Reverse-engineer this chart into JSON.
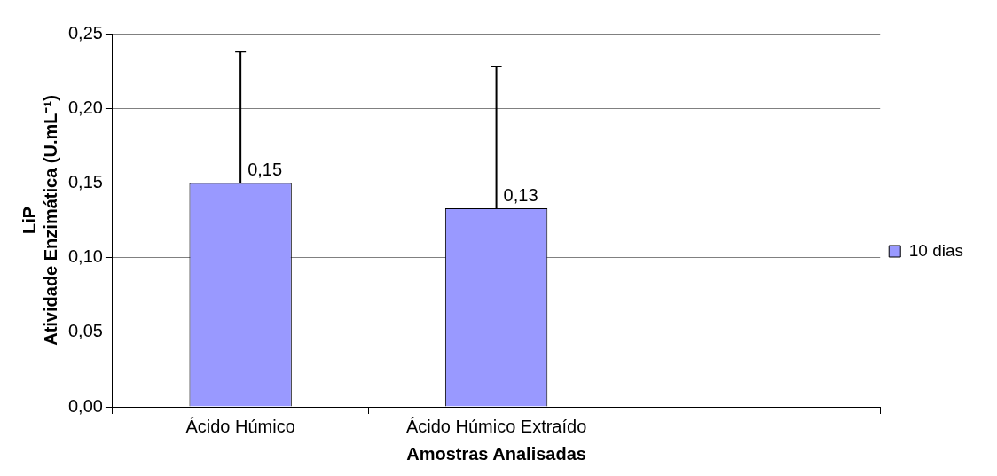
{
  "chart_data": {
    "type": "bar",
    "xlabel": "Amostras Analisadas",
    "ylabel": "LiP\nAtividade Enzimática (U.mL⁻¹)",
    "categories": [
      "Ácido Húmico",
      "Ácido Húmico Extraído",
      null
    ],
    "series": [
      {
        "name": "10 dias",
        "color": "#9999ff",
        "values": [
          0.15,
          0.133,
          null
        ],
        "errors": [
          [
            0.15,
            0.238
          ],
          [
            0.133,
            0.228
          ],
          null
        ],
        "value_labels": [
          "0,15",
          "0,13",
          null
        ]
      }
    ],
    "ylim": [
      0,
      0.25
    ],
    "yticks": [
      {
        "value": 0,
        "label": "0,00"
      },
      {
        "value": 0.05,
        "label": "0,05"
      },
      {
        "value": 0.1,
        "label": "0,10"
      },
      {
        "value": 0.15,
        "label": "0,15"
      },
      {
        "value": 0.2,
        "label": "0,20"
      },
      {
        "value": 0.25,
        "label": "0,25"
      }
    ],
    "grid": "y",
    "legend": "right"
  }
}
